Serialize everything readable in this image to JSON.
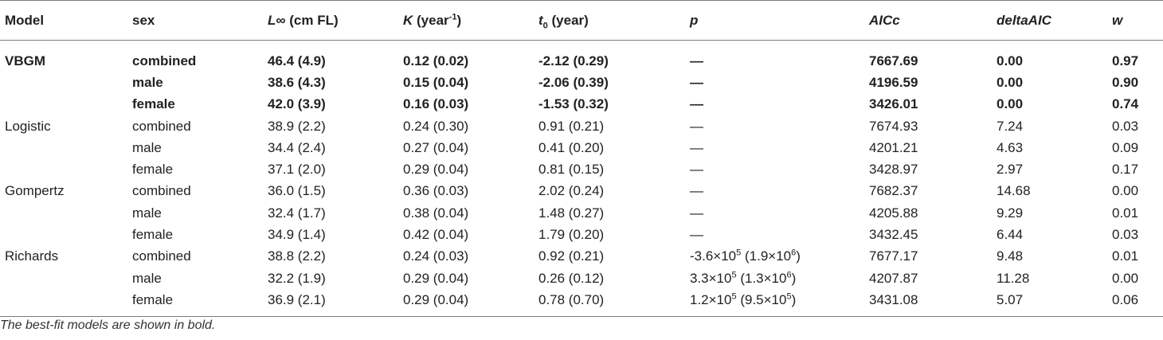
{
  "table": {
    "headers": {
      "model": "Model",
      "sex": "sex",
      "linf_sym": "L∞",
      "linf_unit": " (cm FL)",
      "k_sym": "K",
      "k_unit_pre": " (year",
      "k_unit_sup": "-1",
      "k_unit_post": ")",
      "t0_sym": "t",
      "t0_sub": "0",
      "t0_unit": " (year)",
      "p": "p",
      "aicc": "AICc",
      "delta": "deltaAIC",
      "w": "w"
    },
    "rows": [
      {
        "model": "VBGM",
        "sex": "combined",
        "linf": "46.4 (4.9)",
        "k": "0.12 (0.02)",
        "t0": "-2.12 (0.29)",
        "p": "—",
        "aicc": "7667.69",
        "delta": "0.00",
        "w": "0.97"
      },
      {
        "model": "",
        "sex": "male",
        "linf": "38.6 (4.3)",
        "k": "0.15 (0.04)",
        "t0": "-2.06 (0.39)",
        "p": "—",
        "aicc": "4196.59",
        "delta": "0.00",
        "w": "0.90"
      },
      {
        "model": "",
        "sex": "female",
        "linf": "42.0 (3.9)",
        "k": "0.16 (0.03)",
        "t0": "-1.53 (0.32)",
        "p": "—",
        "aicc": "3426.01",
        "delta": "0.00",
        "w": "0.74"
      },
      {
        "model": "Logistic",
        "sex": "combined",
        "linf": "38.9 (2.2)",
        "k": "0.24 (0.30)",
        "t0": "0.91 (0.21)",
        "p": "—",
        "aicc": "7674.93",
        "delta": "7.24",
        "w": "0.03"
      },
      {
        "model": "",
        "sex": "male",
        "linf": "34.4 (2.4)",
        "k": "0.27 (0.04)",
        "t0": "0.41 (0.20)",
        "p": "—",
        "aicc": "4201.21",
        "delta": "4.63",
        "w": "0.09"
      },
      {
        "model": "",
        "sex": "female",
        "linf": "37.1 (2.0)",
        "k": "0.29 (0.04)",
        "t0": "0.81 (0.15)",
        "p": "—",
        "aicc": "3428.97",
        "delta": "2.97",
        "w": "0.17"
      },
      {
        "model": "Gompertz",
        "sex": "combined",
        "linf": "36.0 (1.5)",
        "k": "0.36 (0.03)",
        "t0": "2.02 (0.24)",
        "p": "—",
        "aicc": "7682.37",
        "delta": "14.68",
        "w": "0.00"
      },
      {
        "model": "",
        "sex": "male",
        "linf": "32.4 (1.7)",
        "k": "0.38 (0.04)",
        "t0": "1.48 (0.27)",
        "p": "—",
        "aicc": "4205.88",
        "delta": "9.29",
        "w": "0.01"
      },
      {
        "model": "",
        "sex": "female",
        "linf": "34.9 (1.4)",
        "k": "0.42 (0.04)",
        "t0": "1.79 (0.20)",
        "p": "—",
        "aicc": "3432.45",
        "delta": "6.44",
        "w": "0.03"
      },
      {
        "model": "Richards",
        "sex": "combined",
        "linf": "38.8 (2.2)",
        "k": "0.24 (0.03)",
        "t0": "0.92 (0.21)",
        "p_a": "-3.6×10",
        "p_a_sup": "5",
        "p_b": " (1.9×10",
        "p_b_sup": "6",
        "p_c": ")",
        "aicc": "7677.17",
        "delta": "9.48",
        "w": "0.01"
      },
      {
        "model": "",
        "sex": "male",
        "linf": "32.2 (1.9)",
        "k": "0.29 (0.04)",
        "t0": "0.26 (0.12)",
        "p_a": "3.3×10",
        "p_a_sup": "5",
        "p_b": " (1.3×10",
        "p_b_sup": "6",
        "p_c": ")",
        "aicc": "4207.87",
        "delta": "11.28",
        "w": "0.00"
      },
      {
        "model": "",
        "sex": "female",
        "linf": "36.9 (2.1)",
        "k": "0.29 (0.04)",
        "t0": "0.78 (0.70)",
        "p_a": "1.2×10",
        "p_a_sup": "5",
        "p_b": " (9.5×10",
        "p_b_sup": "5",
        "p_c": ")",
        "aicc": "3431.08",
        "delta": "5.07",
        "w": "0.06"
      }
    ]
  },
  "footnote": "The best-fit models are shown in bold."
}
